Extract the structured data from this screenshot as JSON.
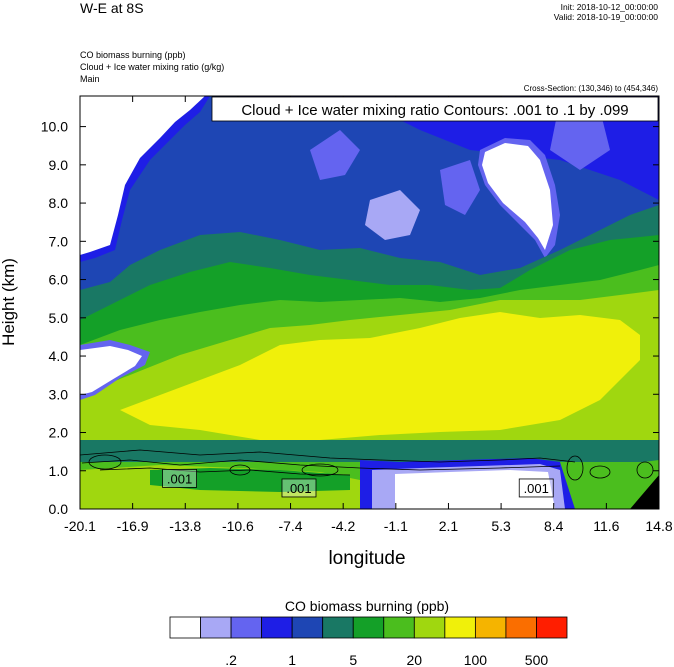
{
  "header": {
    "title": "W-E at 8S",
    "init": "Init: 2018-10-12_00:00:00",
    "valid": "Valid: 2018-10-19_00:00:00",
    "fields": [
      "CO biomass burning   (ppb)",
      "Cloud + Ice water mixing ratio   (g/kg)",
      "Main"
    ],
    "cross_section": "Cross-Section: (130,346) to (454,346)"
  },
  "chart_data": {
    "type": "heatmap",
    "subtype": "filled-contour cross-section with line contours",
    "ylabel": "Height (km)",
    "xlabel": "longitude",
    "xlim": [
      -20.1,
      14.8
    ],
    "ylim": [
      0.0,
      10.8
    ],
    "x_ticks": [
      "-20.1",
      "-16.9",
      "-13.8",
      "-10.6",
      "-7.4",
      "-4.2",
      "-1.1",
      "2.1",
      "5.3",
      "8.4",
      "11.6",
      "14.8"
    ],
    "y_ticks": [
      "0.0",
      "1.0",
      "2.0",
      "3.0",
      "4.0",
      "5.0",
      "6.0",
      "7.0",
      "8.0",
      "9.0",
      "10.0"
    ],
    "contour_title": "Cloud + Ice water mixing ratio Contours: .001 to .1 by .099",
    "contour_labels": [
      {
        "text": ".001",
        "x": -14.1,
        "y": 0.8
      },
      {
        "text": ".001",
        "x": -6.9,
        "y": 0.55
      },
      {
        "text": ".001",
        "x": 7.4,
        "y": 0.55
      }
    ],
    "colorbar": {
      "title": "CO biomass burning  (ppb)",
      "colors": [
        "#ffffff",
        "#a8a8f5",
        "#6464f0",
        "#1e1ee6",
        "#1e46b4",
        "#197864",
        "#14a028",
        "#4bbe1e",
        "#a0d70f",
        "#f0f00a",
        "#f5b400",
        "#fa6e00",
        "#ff1e00"
      ],
      "labels": [
        {
          "text": ".2",
          "index": 2
        },
        {
          "text": "1",
          "index": 4
        },
        {
          "text": "5",
          "index": 6
        },
        {
          "text": "20",
          "index": 8
        },
        {
          "text": "100",
          "index": 10
        },
        {
          "text": "500",
          "index": 12
        }
      ]
    }
  }
}
